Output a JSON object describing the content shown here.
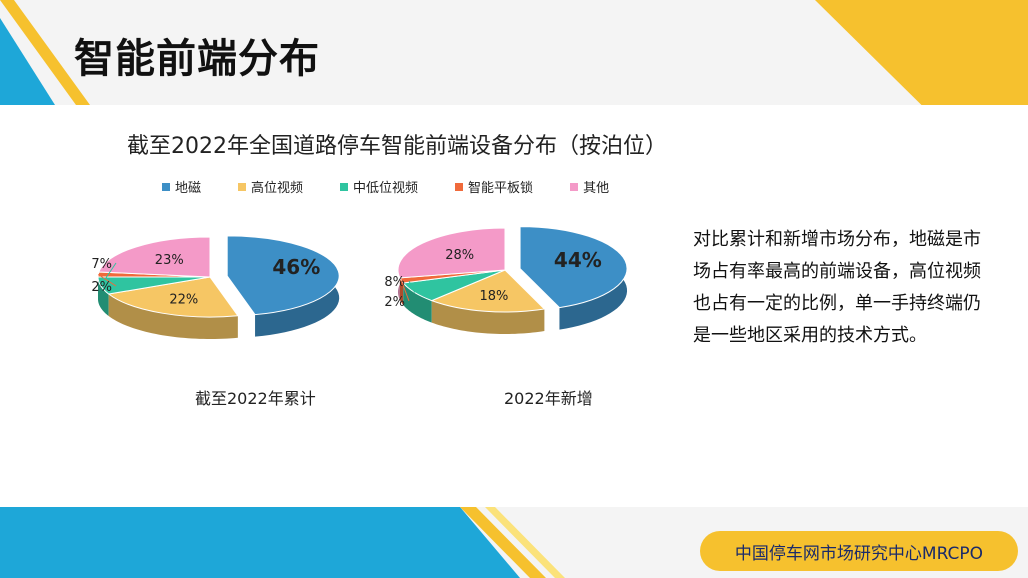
{
  "page": {
    "title": "智能前端分布",
    "side_text": "对比累计和新增市场分布，地磁是市场占有率最高的前端设备，高位视频也占有一定的比例，单一手持终端仍是一些地区采用的技术方式。",
    "footer": "中国停车网市场研究中心MRCPO"
  },
  "colors": {
    "yellow": "#f6c12e",
    "blue": "#1ea7d8",
    "pale_yellow": "#fbe27a"
  },
  "chart_data": {
    "type": "pie",
    "title": "截至2022年全国道路停车智能前端设备分布（按泊位）",
    "legend": [
      {
        "name": "地磁",
        "color": "#3d8fc6"
      },
      {
        "name": "高位视频",
        "color": "#f6c664"
      },
      {
        "name": "中低位视频",
        "color": "#2fc4a0"
      },
      {
        "name": "智能平板锁",
        "color": "#f06a3b"
      },
      {
        "name": "其他",
        "color": "#f49ac8"
      }
    ],
    "legend_position": "top",
    "charts": [
      {
        "caption": "截至2022年累计",
        "slices": [
          {
            "name": "地磁",
            "value": 46,
            "label": "46%"
          },
          {
            "name": "高位视频",
            "value": 22,
            "label": "22%"
          },
          {
            "name": "中低位视频",
            "value": 7,
            "label": "7%"
          },
          {
            "name": "智能平板锁",
            "value": 2,
            "label": "2%"
          },
          {
            "name": "其他",
            "value": 23,
            "label": "23%"
          }
        ]
      },
      {
        "caption": "2022年新增",
        "slices": [
          {
            "name": "地磁",
            "value": 44,
            "label": "44%"
          },
          {
            "name": "高位视频",
            "value": 18,
            "label": "18%"
          },
          {
            "name": "中低位视频",
            "value": 8,
            "label": "8%"
          },
          {
            "name": "智能平板锁",
            "value": 2,
            "label": "2%"
          },
          {
            "name": "其他",
            "value": 28,
            "label": "28%"
          }
        ]
      }
    ]
  }
}
